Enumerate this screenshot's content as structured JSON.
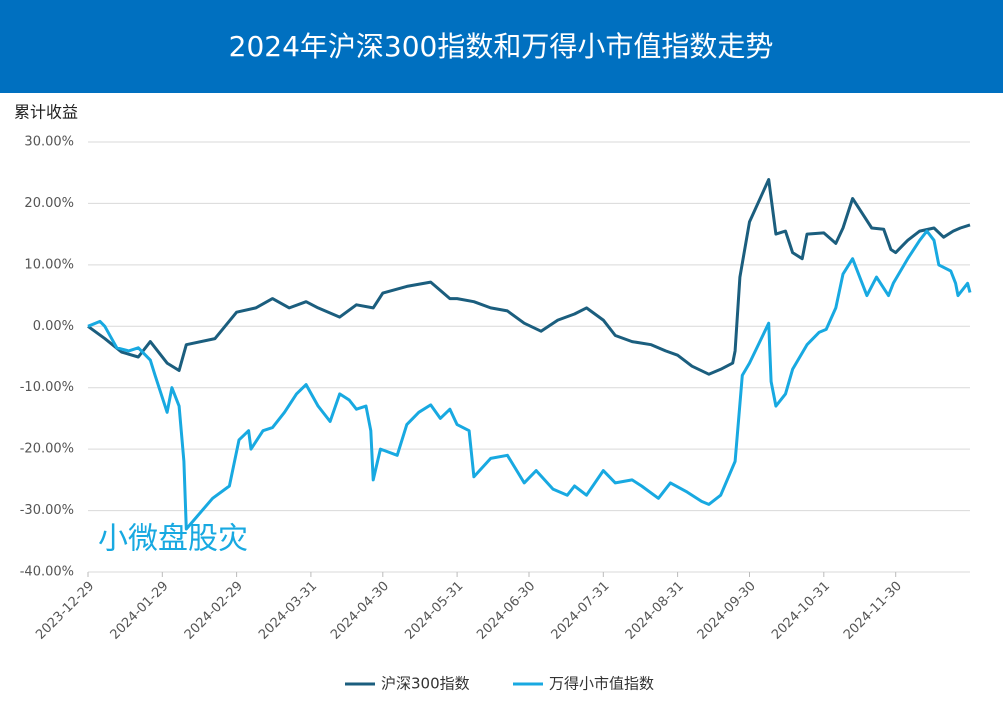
{
  "chart_data": {
    "type": "line",
    "title": "2024年沪深300指数和万得小市值指数走势",
    "y_label": "累计收益",
    "annotation": "小微盘股灾",
    "xlim": [
      "2023-12-29",
      "2024-12-31"
    ],
    "xticks": [
      "2023-12-29",
      "2024-01-29",
      "2024-02-29",
      "2024-03-31",
      "2024-04-30",
      "2024-05-31",
      "2024-06-30",
      "2024-07-31",
      "2024-08-31",
      "2024-09-30",
      "2024-10-31",
      "2024-11-30"
    ],
    "ylim": [
      -40,
      30
    ],
    "yticks": [
      {
        "value": 30,
        "label": "30.00%"
      },
      {
        "value": 20,
        "label": "20.00%"
      },
      {
        "value": 10,
        "label": "10.00%"
      },
      {
        "value": 0,
        "label": "0.00%"
      },
      {
        "value": -10,
        "label": "-10.00%"
      },
      {
        "value": -20,
        "label": "-20.00%"
      },
      {
        "value": -30,
        "label": "-30.00%"
      },
      {
        "value": -40,
        "label": "-40.00%"
      }
    ],
    "grid": true,
    "legend": "bottom",
    "series": [
      {
        "name": "沪深300指数",
        "color": "#1b5e7e",
        "x": [
          "2023-12-29",
          "2024-01-05",
          "2024-01-12",
          "2024-01-19",
          "2024-01-24",
          "2024-01-31",
          "2024-02-05",
          "2024-02-08",
          "2024-02-20",
          "2024-02-29",
          "2024-03-08",
          "2024-03-15",
          "2024-03-22",
          "2024-03-29",
          "2024-04-03",
          "2024-04-12",
          "2024-04-19",
          "2024-04-26",
          "2024-04-30",
          "2024-05-10",
          "2024-05-20",
          "2024-05-28",
          "2024-05-31",
          "2024-06-07",
          "2024-06-14",
          "2024-06-21",
          "2024-06-28",
          "2024-07-05",
          "2024-07-12",
          "2024-07-19",
          "2024-07-24",
          "2024-07-31",
          "2024-08-05",
          "2024-08-12",
          "2024-08-20",
          "2024-08-26",
          "2024-08-31",
          "2024-09-06",
          "2024-09-13",
          "2024-09-18",
          "2024-09-23",
          "2024-09-24",
          "2024-09-26",
          "2024-09-30",
          "2024-10-08",
          "2024-10-11",
          "2024-10-15",
          "2024-10-18",
          "2024-10-22",
          "2024-10-24",
          "2024-10-31",
          "2024-11-05",
          "2024-11-08",
          "2024-11-12",
          "2024-11-15",
          "2024-11-20",
          "2024-11-25",
          "2024-11-28",
          "2024-11-30",
          "2024-12-05",
          "2024-12-10",
          "2024-12-16",
          "2024-12-20",
          "2024-12-24",
          "2024-12-27",
          "2024-12-31"
        ],
        "values": [
          0,
          -2,
          -4.2,
          -5,
          -2.5,
          -6,
          -7.2,
          -3,
          -2,
          2.3,
          3,
          4.5,
          3,
          4,
          3,
          1.5,
          3.5,
          3,
          5.4,
          6.5,
          7.2,
          4.5,
          4.5,
          4,
          3,
          2.5,
          0.5,
          -0.8,
          1,
          2,
          3,
          1,
          -1.5,
          -2.5,
          -3,
          -4,
          -4.7,
          -6.5,
          -7.8,
          -7,
          -6,
          -4,
          8,
          17,
          23.9,
          15,
          15.5,
          12,
          11,
          15,
          15.2,
          13.5,
          16,
          20.8,
          19,
          16,
          15.8,
          12.5,
          12,
          14,
          15.5,
          16,
          14.5,
          15.5,
          16,
          16.5
        ]
      },
      {
        "name": "万得小市值指数",
        "color": "#18a9e1",
        "x": [
          "2023-12-29",
          "2024-01-03",
          "2024-01-05",
          "2024-01-10",
          "2024-01-15",
          "2024-01-19",
          "2024-01-24",
          "2024-01-26",
          "2024-01-31",
          "2024-02-02",
          "2024-02-05",
          "2024-02-07",
          "2024-02-08",
          "2024-02-19",
          "2024-02-26",
          "2024-03-01",
          "2024-03-05",
          "2024-03-06",
          "2024-03-11",
          "2024-03-15",
          "2024-03-20",
          "2024-03-25",
          "2024-03-29",
          "2024-04-03",
          "2024-04-08",
          "2024-04-12",
          "2024-04-16",
          "2024-04-19",
          "2024-04-23",
          "2024-04-25",
          "2024-04-26",
          "2024-04-29",
          "2024-05-06",
          "2024-05-10",
          "2024-05-15",
          "2024-05-20",
          "2024-05-24",
          "2024-05-28",
          "2024-05-31",
          "2024-06-05",
          "2024-06-07",
          "2024-06-14",
          "2024-06-21",
          "2024-06-28",
          "2024-07-03",
          "2024-07-10",
          "2024-07-16",
          "2024-07-19",
          "2024-07-24",
          "2024-07-31",
          "2024-08-05",
          "2024-08-12",
          "2024-08-16",
          "2024-08-23",
          "2024-08-28",
          "2024-09-04",
          "2024-09-10",
          "2024-09-13",
          "2024-09-18",
          "2024-09-24",
          "2024-09-27",
          "2024-09-30",
          "2024-10-08",
          "2024-10-09",
          "2024-10-11",
          "2024-10-15",
          "2024-10-18",
          "2024-10-24",
          "2024-10-29",
          "2024-11-01",
          "2024-11-05",
          "2024-11-08",
          "2024-11-12",
          "2024-11-18",
          "2024-11-22",
          "2024-11-27",
          "2024-11-29",
          "2024-12-05",
          "2024-12-10",
          "2024-12-13",
          "2024-12-16",
          "2024-12-18",
          "2024-12-23",
          "2024-12-25",
          "2024-12-26",
          "2024-12-30",
          "2024-12-31"
        ],
        "values": [
          0,
          0.8,
          0,
          -3.5,
          -4,
          -3.5,
          -5.5,
          -8,
          -14,
          -10,
          -13,
          -22,
          -33,
          -28,
          -26,
          -18.5,
          -17,
          -20,
          -17,
          -16.5,
          -14,
          -11,
          -9.5,
          -13,
          -15.5,
          -11,
          -12,
          -13.5,
          -13,
          -17,
          -25,
          -20,
          -21,
          -16,
          -14,
          -12.8,
          -15,
          -13.5,
          -16,
          -17,
          -24.5,
          -21.5,
          -21,
          -25.5,
          -23.5,
          -26.5,
          -27.5,
          -26,
          -27.5,
          -23.5,
          -25.5,
          -25,
          -26,
          -28,
          -25.5,
          -27,
          -28.5,
          -29,
          -27.5,
          -22,
          -8,
          -6,
          0.5,
          -9,
          -13,
          -11,
          -7,
          -3,
          -1,
          -0.5,
          3,
          8.5,
          11,
          5,
          8,
          5,
          7,
          11,
          14,
          15.5,
          14,
          10,
          9,
          7,
          5,
          7,
          5.5
        ]
      }
    ]
  }
}
